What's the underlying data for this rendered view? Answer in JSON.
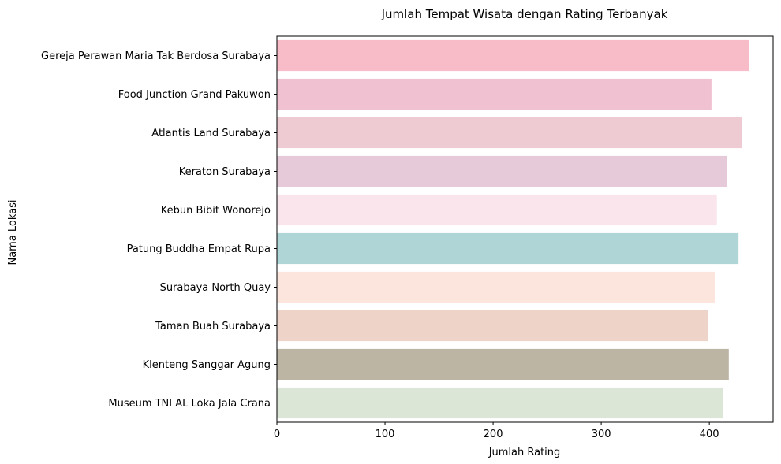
{
  "chart_data": {
    "type": "bar",
    "orientation": "horizontal",
    "title": "Jumlah Tempat Wisata dengan Rating Terbanyak",
    "xlabel": "Jumlah Rating",
    "ylabel": "Nama Lokasi",
    "xlim": [
      0,
      459
    ],
    "xticks": [
      0,
      100,
      200,
      300,
      400
    ],
    "grid": false,
    "categories": [
      "Gereja Perawan Maria Tak Berdosa Surabaya",
      "Food Junction Grand Pakuwon",
      "Atlantis Land Surabaya",
      "Keraton Surabaya",
      "Kebun Bibit Wonorejo",
      "Patung Buddha Empat Rupa",
      "Surabaya North Quay",
      "Taman Buah Surabaya",
      "Klenteng Sanggar Agung",
      "Museum TNI AL Loka Jala Crana"
    ],
    "values": [
      437,
      402,
      430,
      416,
      407,
      427,
      405,
      399,
      418,
      413
    ],
    "colors": [
      "#f8bcc8",
      "#f0c2d1",
      "#eecad3",
      "#e6cad9",
      "#fae5ec",
      "#afd5d6",
      "#fbe5dc",
      "#eed3c8",
      "#bdb5a3",
      "#dbe6d6"
    ]
  }
}
